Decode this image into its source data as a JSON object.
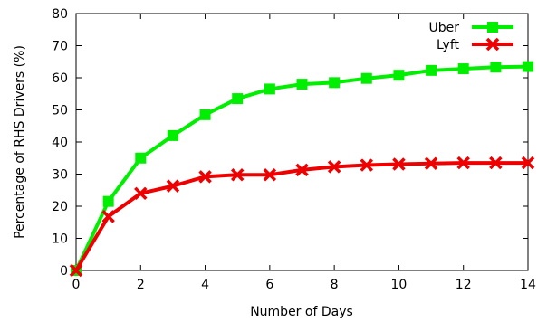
{
  "chart_data": {
    "type": "line",
    "xlabel": "Number of Days",
    "ylabel": "Percentage of RHS Drivers (%)",
    "xlim": [
      0,
      14
    ],
    "ylim": [
      0,
      80
    ],
    "x_ticks": [
      0,
      2,
      4,
      6,
      8,
      10,
      12,
      14
    ],
    "y_ticks": [
      0,
      10,
      20,
      30,
      40,
      50,
      60,
      70,
      80
    ],
    "grid": false,
    "legend_position": "top-right",
    "x": [
      0,
      1,
      2,
      3,
      4,
      5,
      6,
      7,
      8,
      9,
      10,
      11,
      12,
      13,
      14
    ],
    "series": [
      {
        "name": "Uber",
        "color": "#00ee00",
        "marker": "square",
        "values": [
          0,
          21.5,
          35,
          42,
          48.5,
          53.5,
          56.5,
          58,
          58.5,
          59.8,
          60.8,
          62.3,
          62.8,
          63.3,
          63.5
        ]
      },
      {
        "name": "Lyft",
        "color": "#ee0000",
        "marker": "x",
        "values": [
          0,
          16.8,
          24,
          26.3,
          29.2,
          29.8,
          29.8,
          31.3,
          32.3,
          32.8,
          33.1,
          33.3,
          33.5,
          33.5,
          33.5
        ]
      }
    ]
  }
}
